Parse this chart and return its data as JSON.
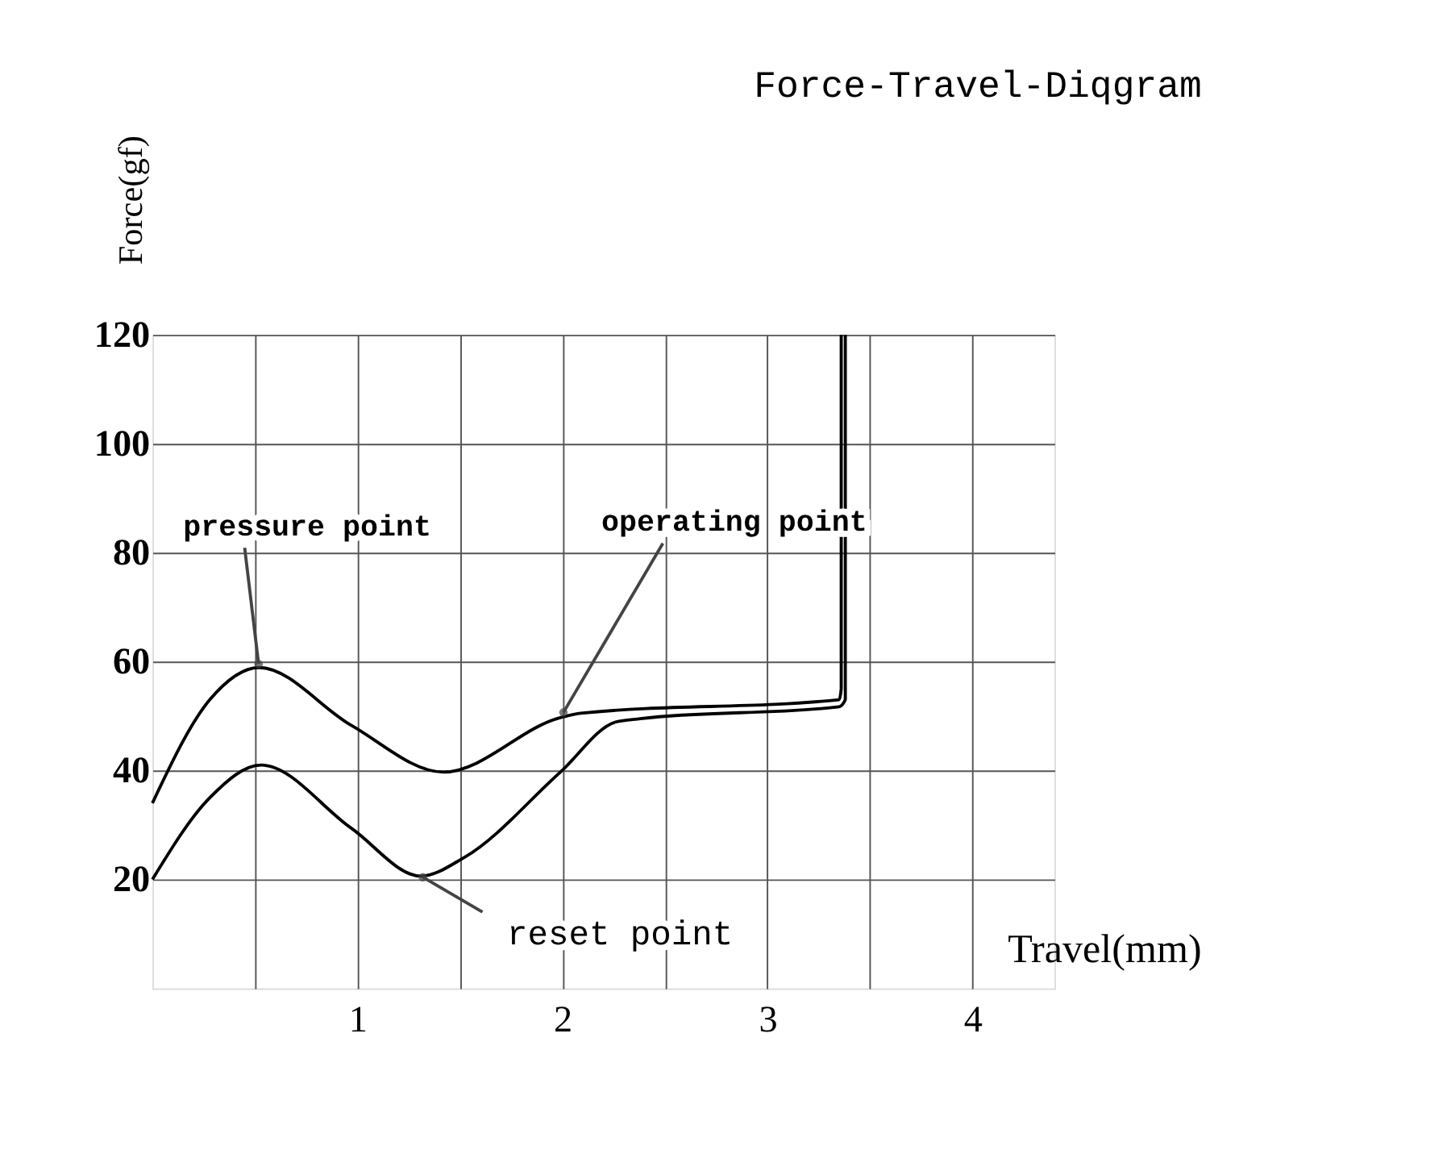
{
  "chart_data": {
    "type": "line",
    "title": "Force-Travel-Diqgram",
    "xlabel": "Travel(mm)",
    "ylabel": "Force(gf)",
    "series": [
      {
        "color": "#000000",
        "x": [
          0,
          0.28,
          0.52,
          0.97,
          1.42,
          1.99,
          2.09,
          3.35,
          3.36,
          3.36
        ],
        "values": [
          34,
          53,
          58.9,
          48.3,
          39.7,
          49.7,
          50.5,
          53,
          55,
          120
        ]
      },
      {
        "color": "#000000",
        "x": [
          0,
          0.28,
          0.53,
          0.97,
          1.31,
          1.52,
          1.99,
          2.26,
          2.38,
          3.35,
          3.38,
          3.38
        ],
        "values": [
          20,
          35,
          41,
          29.4,
          20.6,
          24,
          39.7,
          48.9,
          49.5,
          51.7,
          53,
          120
        ]
      }
    ],
    "xlim": [
      0,
      4.4
    ],
    "ylim": [
      0,
      120
    ],
    "xticks": [
      {
        "value": 0.5,
        "label": null
      },
      1,
      {
        "value": 1.5,
        "label": null
      },
      2,
      {
        "value": 2.5,
        "label": null
      },
      3,
      {
        "value": 3.5,
        "label": null
      },
      4
    ],
    "yticks": [
      20,
      40,
      60,
      80,
      100,
      120
    ],
    "grid": true,
    "legend": false,
    "marker": "none",
    "line_style": "solid",
    "annotations": [
      {
        "text": "pressure point",
        "x": 0.52,
        "y": 58.9
      },
      {
        "text": "operating point",
        "x": 1.99,
        "y": 49.7
      },
      {
        "text": "reset point",
        "x": 1.31,
        "y": 20.6
      }
    ]
  }
}
